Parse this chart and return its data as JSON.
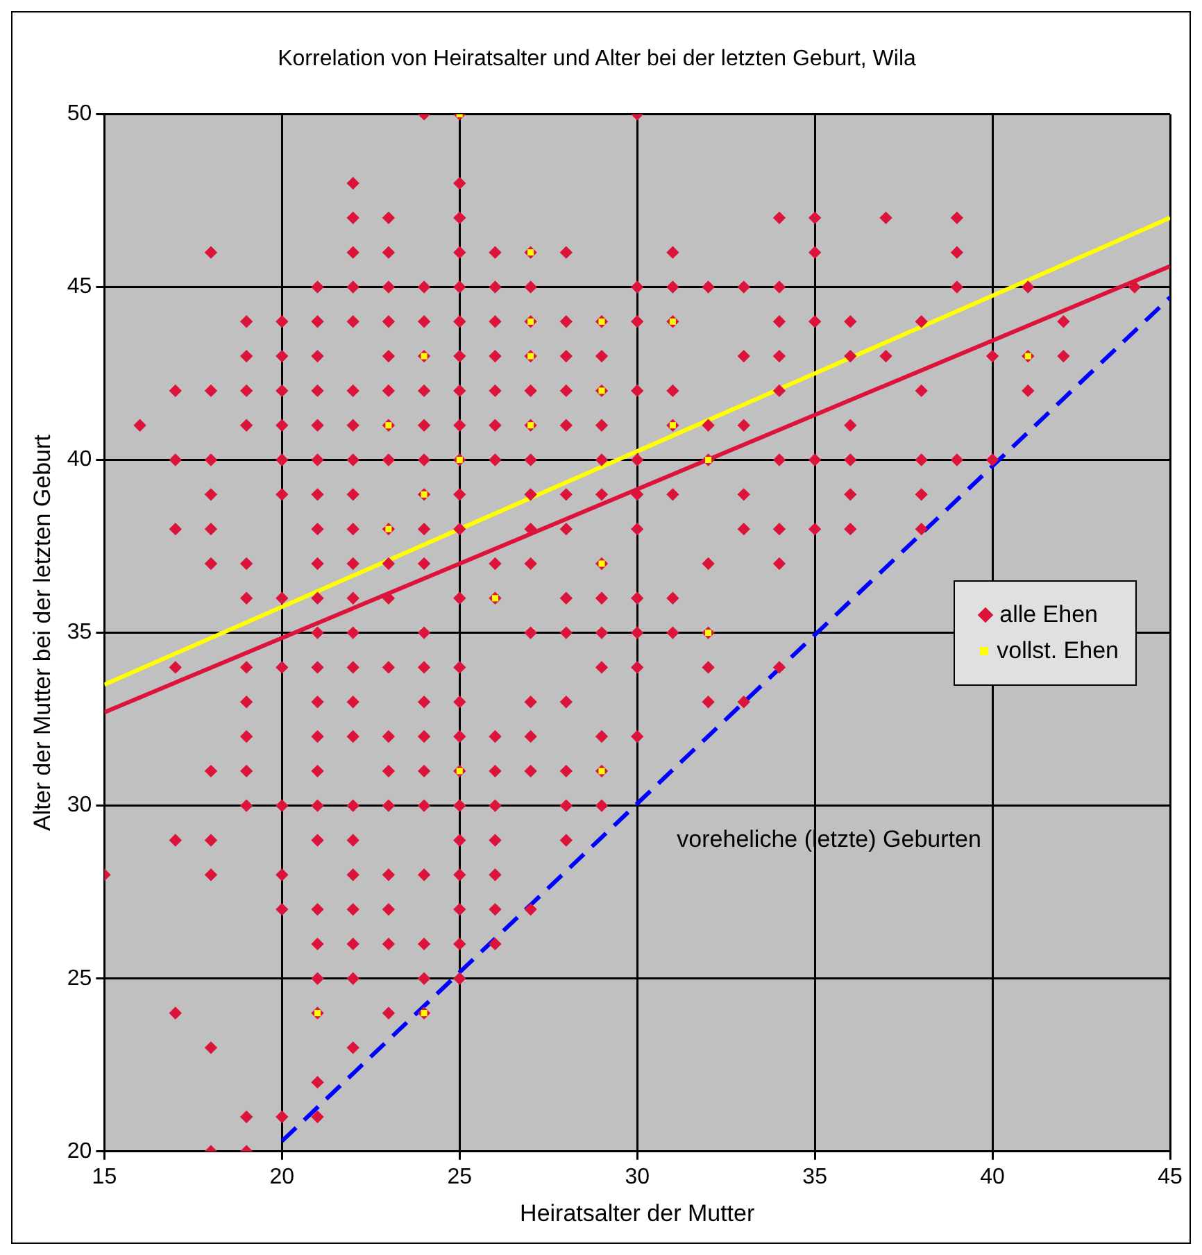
{
  "chart_data": {
    "type": "scatter",
    "title": "Korrelation von Heiratsalter und Alter bei der letzten Geburt, Wila",
    "xlabel": "Heiratsalter der Mutter",
    "ylabel": "Alter der Mutter bei der letzten Geburt",
    "xlim": [
      15,
      45
    ],
    "xticks": [
      15,
      20,
      25,
      30,
      35,
      40,
      45
    ],
    "ylim": [
      20,
      50
    ],
    "yticks": [
      20,
      25,
      30,
      35,
      40,
      45,
      50
    ],
    "grid": true,
    "legend": "right",
    "annotations": [
      "voreheliche (letzte) Geburten"
    ],
    "series": [
      {
        "name": "alle Ehen",
        "marker": "diamond",
        "color": "#dc143c",
        "x": [
          15,
          16,
          17,
          17,
          17,
          17,
          17,
          17,
          18,
          18,
          18,
          18,
          18,
          18,
          18,
          18,
          18,
          18,
          18,
          19,
          19,
          19,
          19,
          19,
          19,
          19,
          19,
          19,
          19,
          19,
          19,
          19,
          20,
          20,
          20,
          20,
          20,
          20,
          20,
          20,
          20,
          20,
          20,
          20,
          21,
          21,
          21,
          21,
          21,
          21,
          21,
          21,
          21,
          21,
          21,
          21,
          21,
          21,
          21,
          21,
          21,
          21,
          21,
          21,
          21,
          21,
          21,
          22,
          22,
          22,
          22,
          22,
          22,
          22,
          22,
          22,
          22,
          22,
          22,
          22,
          22,
          22,
          22,
          22,
          22,
          22,
          22,
          22,
          22,
          22,
          23,
          23,
          23,
          23,
          23,
          23,
          23,
          23,
          23,
          23,
          23,
          23,
          23,
          23,
          23,
          23,
          23,
          23,
          23,
          24,
          24,
          24,
          24,
          24,
          24,
          24,
          24,
          24,
          24,
          24,
          24,
          24,
          24,
          24,
          24,
          24,
          24,
          24,
          24,
          25,
          25,
          25,
          25,
          25,
          25,
          25,
          25,
          25,
          25,
          25,
          25,
          25,
          25,
          25,
          25,
          25,
          25,
          25,
          25,
          25,
          25,
          25,
          26,
          26,
          26,
          26,
          26,
          26,
          26,
          26,
          26,
          26,
          26,
          26,
          26,
          26,
          26,
          26,
          27,
          27,
          27,
          27,
          27,
          27,
          27,
          27,
          27,
          27,
          27,
          27,
          27,
          27,
          27,
          28,
          28,
          28,
          28,
          28,
          28,
          28,
          28,
          28,
          28,
          28,
          28,
          28,
          29,
          29,
          29,
          29,
          29,
          29,
          29,
          29,
          29,
          29,
          29,
          29,
          29,
          30,
          30,
          30,
          30,
          30,
          30,
          30,
          30,
          30,
          30,
          30,
          31,
          31,
          31,
          31,
          31,
          31,
          31,
          31,
          32,
          32,
          32,
          32,
          32,
          32,
          32,
          33,
          33,
          33,
          33,
          33,
          33,
          34,
          34,
          34,
          34,
          34,
          34,
          34,
          34,
          34,
          35,
          35,
          35,
          35,
          35,
          36,
          36,
          36,
          36,
          36,
          36,
          37,
          37,
          38,
          38,
          38,
          38,
          38,
          39,
          39,
          39,
          39,
          40,
          40,
          41,
          41,
          41,
          42,
          42,
          44
        ],
        "values": [
          28,
          41,
          42,
          40,
          38,
          34,
          29,
          24,
          46,
          42,
          40,
          39,
          38,
          37,
          31,
          29,
          28,
          23,
          20,
          44,
          43,
          42,
          41,
          37,
          36,
          34,
          33,
          32,
          31,
          30,
          21,
          20,
          44,
          43,
          42,
          41,
          40,
          39,
          36,
          34,
          30,
          28,
          27,
          21,
          45,
          44,
          43,
          42,
          41,
          40,
          39,
          38,
          37,
          36,
          35,
          34,
          33,
          32,
          31,
          30,
          29,
          27,
          26,
          25,
          24,
          22,
          21,
          48,
          47,
          46,
          45,
          44,
          42,
          41,
          40,
          39,
          38,
          37,
          36,
          35,
          34,
          33,
          32,
          30,
          29,
          28,
          27,
          26,
          25,
          23,
          47,
          46,
          45,
          44,
          43,
          42,
          41,
          40,
          38,
          37,
          36,
          34,
          32,
          31,
          30,
          28,
          27,
          26,
          24,
          50,
          45,
          44,
          43,
          42,
          41,
          40,
          39,
          38,
          37,
          35,
          34,
          33,
          32,
          31,
          30,
          28,
          26,
          25,
          24,
          50,
          48,
          47,
          46,
          45,
          44,
          43,
          42,
          41,
          40,
          39,
          38,
          36,
          34,
          33,
          32,
          31,
          30,
          29,
          28,
          27,
          26,
          25,
          46,
          45,
          44,
          43,
          42,
          41,
          40,
          37,
          36,
          32,
          31,
          30,
          29,
          28,
          27,
          26,
          46,
          45,
          44,
          43,
          42,
          41,
          40,
          39,
          38,
          37,
          35,
          33,
          32,
          31,
          27,
          46,
          44,
          43,
          42,
          41,
          39,
          38,
          36,
          35,
          33,
          31,
          30,
          29,
          44,
          43,
          42,
          41,
          40,
          39,
          37,
          36,
          35,
          34,
          32,
          31,
          30,
          50,
          45,
          44,
          42,
          40,
          39,
          38,
          36,
          35,
          34,
          32,
          46,
          45,
          44,
          42,
          41,
          39,
          36,
          35,
          45,
          41,
          40,
          37,
          35,
          34,
          33,
          45,
          43,
          41,
          39,
          38,
          33,
          47,
          45,
          44,
          43,
          42,
          40,
          38,
          37,
          34,
          47,
          46,
          44,
          40,
          38,
          44,
          43,
          41,
          40,
          39,
          38,
          47,
          43,
          44,
          42,
          40,
          39,
          38,
          47,
          46,
          45,
          40,
          43,
          40,
          45,
          43,
          42,
          44,
          43,
          45
        ]
      },
      {
        "name": "vollst. Ehen",
        "marker": "square",
        "color": "#ffff00",
        "x": [
          25,
          23,
          23,
          24,
          24,
          25,
          26,
          27,
          27,
          27,
          27,
          29,
          29,
          29,
          31,
          31,
          32,
          32,
          41,
          25,
          21,
          24,
          29
        ],
        "values": [
          50,
          41,
          38,
          43,
          39,
          40,
          36,
          46,
          44,
          43,
          41,
          44,
          42,
          37,
          44,
          41,
          40,
          35,
          43,
          31,
          24,
          24,
          31
        ]
      },
      {
        "type": "line",
        "color": "#ffff00",
        "line_style": "solid",
        "marker": "none",
        "x": [
          15,
          45
        ],
        "values": [
          33.5,
          47
        ]
      },
      {
        "type": "line",
        "color": "#dc143c",
        "line_style": "solid",
        "marker": "none",
        "x": [
          15,
          45
        ],
        "values": [
          32.7,
          45.6
        ]
      },
      {
        "type": "line",
        "color": "#0000ff",
        "line_style": "dashed",
        "marker": "none",
        "x": [
          20,
          45
        ],
        "values": [
          20.3,
          44.7
        ]
      }
    ]
  }
}
